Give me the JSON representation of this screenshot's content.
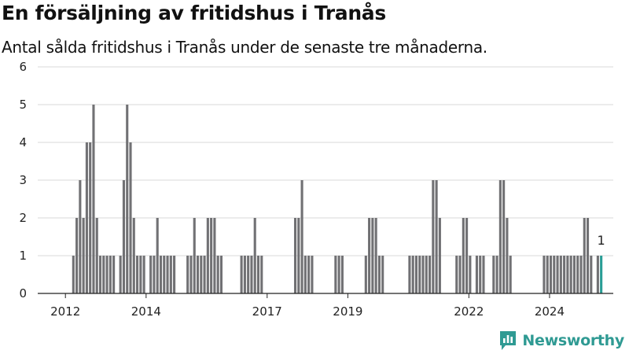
{
  "title": "En försäljning av fritidshus i Tranås",
  "subtitle": "Antal sålda fritidshus i Tranås under de senaste tre månaderna.",
  "brand": "Newsworthy",
  "colors": {
    "bar": "#717174",
    "highlight": "#2a9d95",
    "grid": "#d9d9d9",
    "axis": "#222222",
    "brand": "#2f9a93"
  },
  "chart_data": {
    "type": "bar",
    "title": "En försäljning av fritidshus i Tranås",
    "subtitle": "Antal sålda fritidshus i Tranås under de senaste tre månaderna.",
    "xlabel": "",
    "ylabel": "",
    "ylim": [
      0,
      6
    ],
    "yticks": [
      0,
      1,
      2,
      3,
      4,
      5,
      6
    ],
    "xticks": [
      "2012",
      "2014",
      "2017",
      "2019",
      "2022",
      "2024"
    ],
    "grid": true,
    "start": "2011-05",
    "frequency": "monthly",
    "values": [
      0,
      0,
      0,
      0,
      0,
      0,
      0,
      0,
      0,
      0,
      1,
      2,
      3,
      2,
      4,
      4,
      5,
      2,
      1,
      1,
      1,
      1,
      1,
      0,
      1,
      3,
      5,
      4,
      2,
      1,
      1,
      1,
      0,
      1,
      1,
      2,
      1,
      1,
      1,
      1,
      1,
      0,
      0,
      0,
      1,
      1,
      2,
      1,
      1,
      1,
      2,
      2,
      2,
      1,
      1,
      0,
      0,
      0,
      0,
      0,
      1,
      1,
      1,
      1,
      2,
      1,
      1,
      0,
      0,
      0,
      0,
      0,
      0,
      0,
      0,
      0,
      2,
      2,
      3,
      1,
      1,
      1,
      0,
      0,
      0,
      0,
      0,
      0,
      1,
      1,
      1,
      0,
      0,
      0,
      0,
      0,
      0,
      1,
      2,
      2,
      2,
      1,
      1,
      0,
      0,
      0,
      0,
      0,
      0,
      0,
      1,
      1,
      1,
      1,
      1,
      1,
      1,
      3,
      3,
      2,
      0,
      0,
      0,
      0,
      1,
      1,
      2,
      2,
      1,
      0,
      1,
      1,
      1,
      0,
      0,
      1,
      1,
      3,
      3,
      2,
      1,
      0,
      0,
      0,
      0,
      0,
      0,
      0,
      0,
      0,
      1,
      1,
      1,
      1,
      1,
      1,
      1,
      1,
      1,
      1,
      1,
      1,
      2,
      2,
      1,
      0,
      1,
      1
    ],
    "highlight_last": true,
    "last_value_label": "1"
  }
}
